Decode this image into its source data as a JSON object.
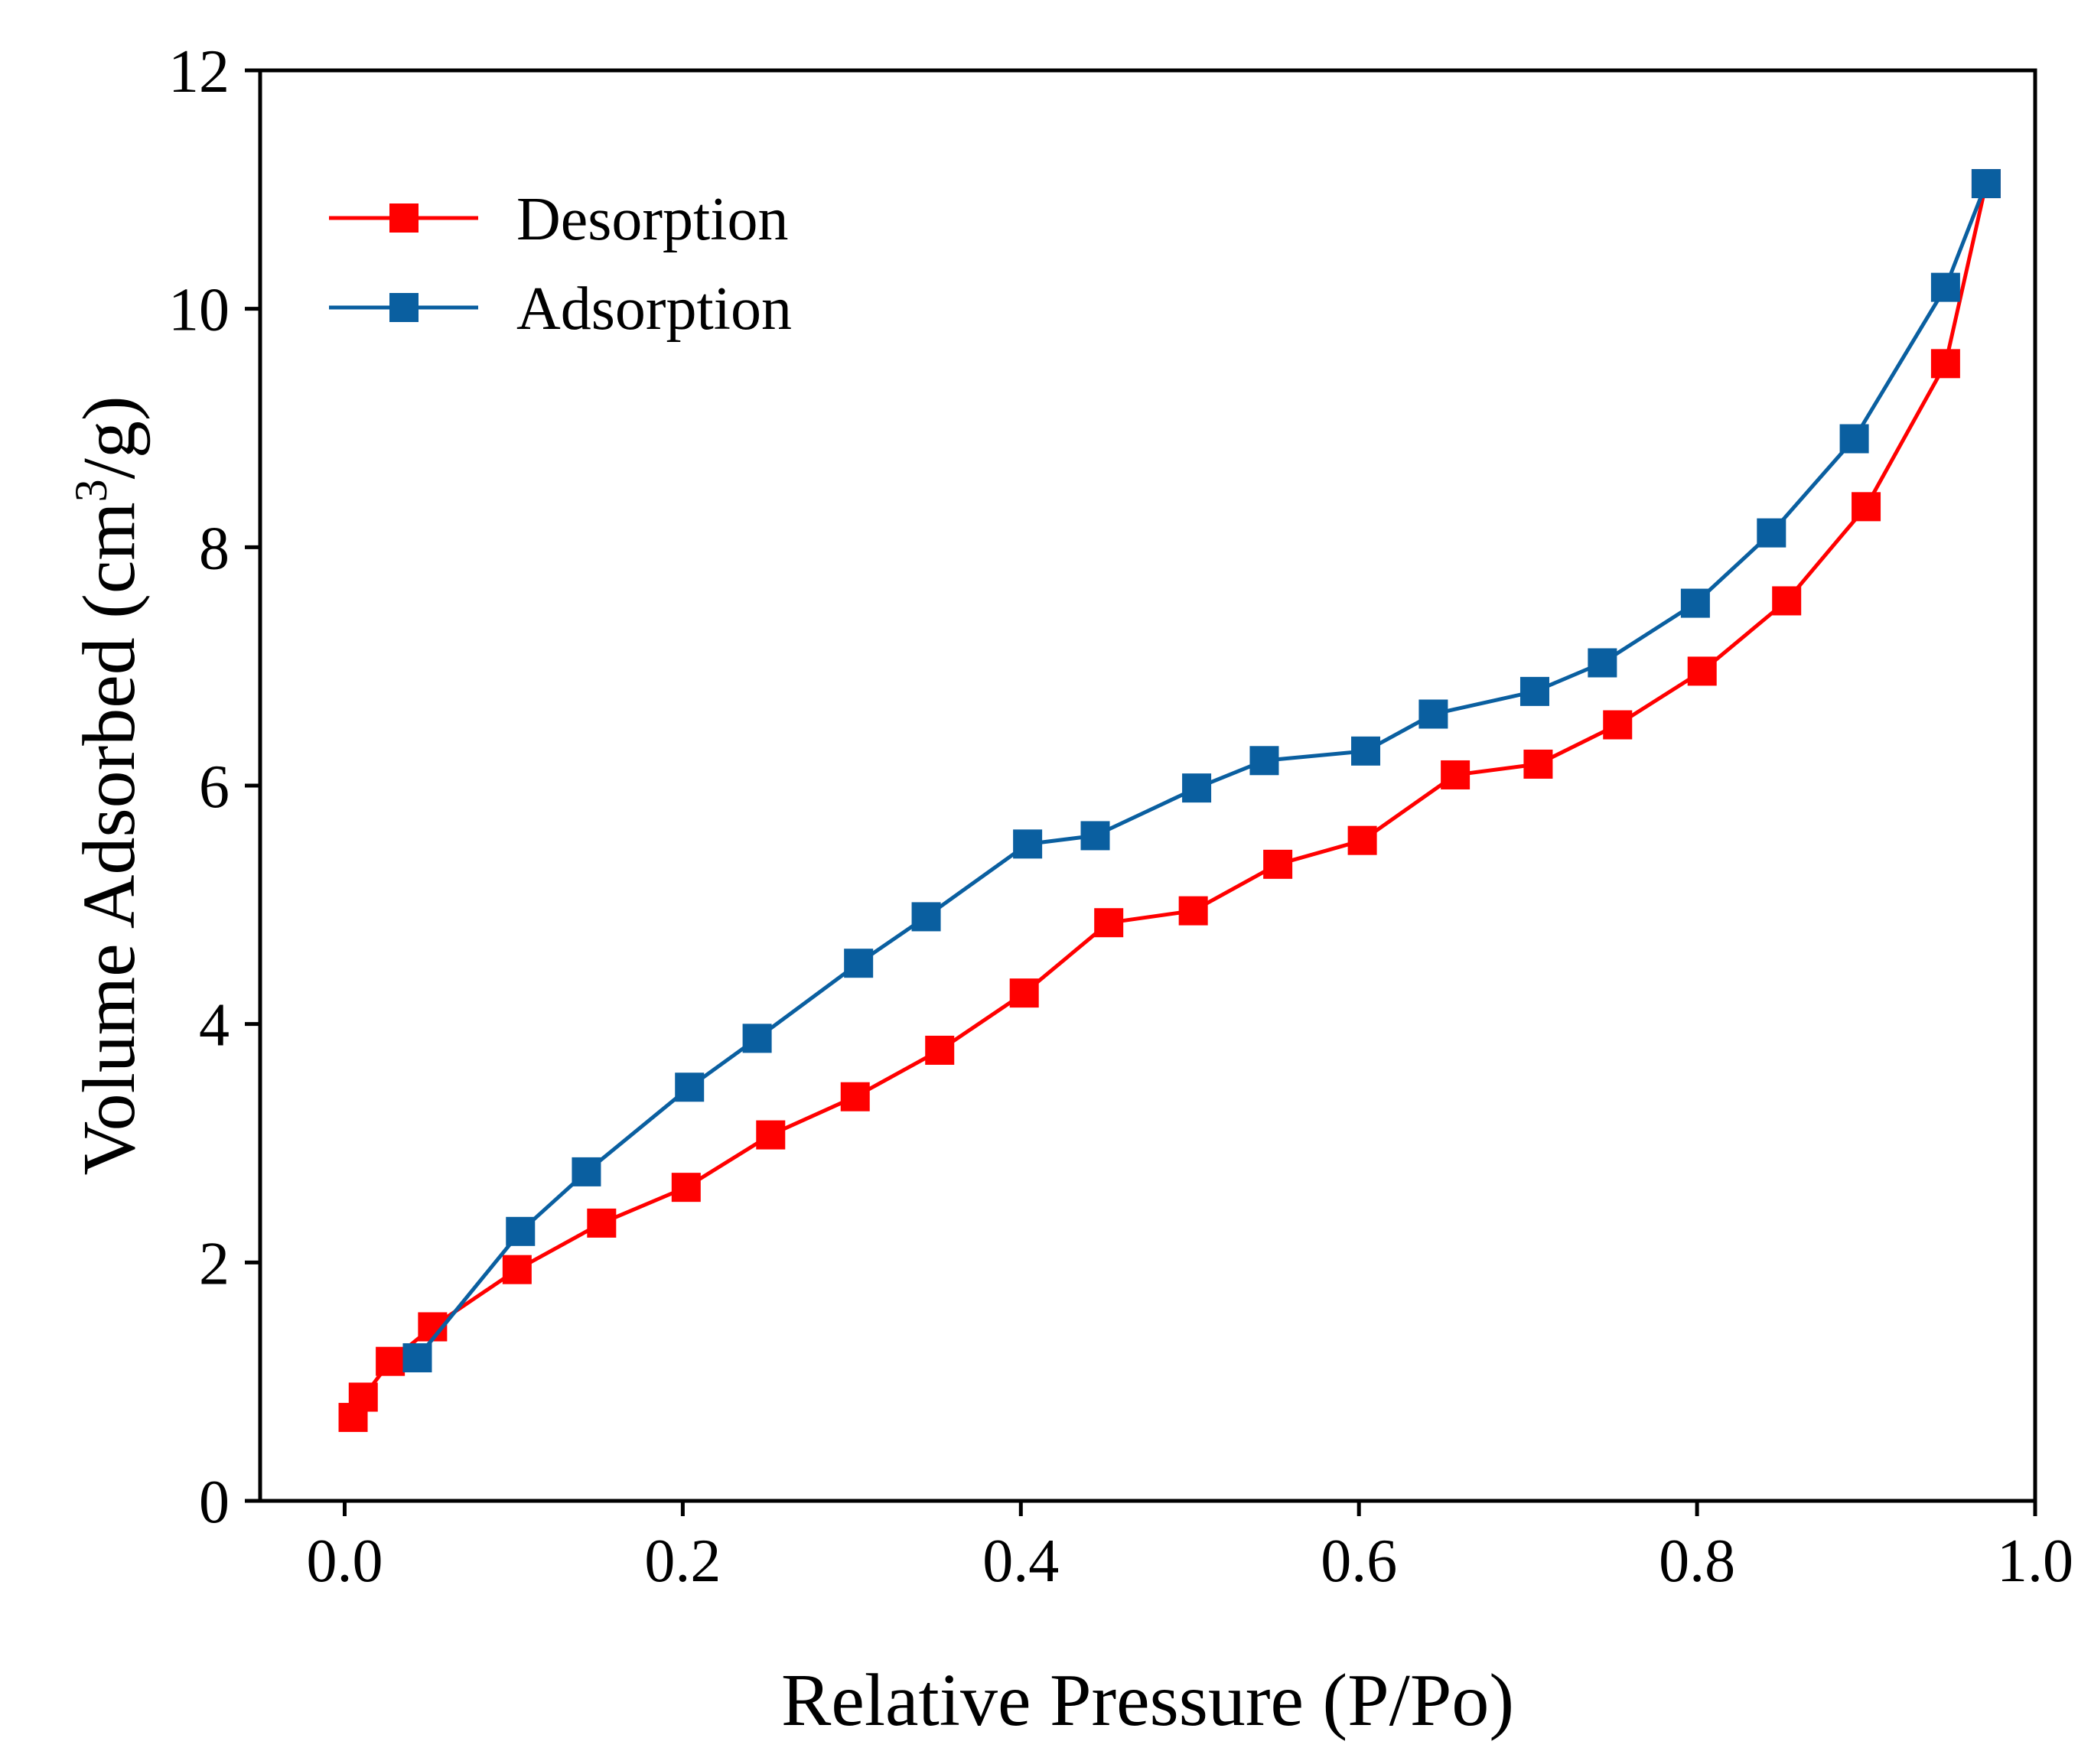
{
  "chart_data": {
    "type": "line",
    "title": "",
    "xlabel": "Relative Pressure (P/Po)",
    "ylabel": "Volume Adsorbed (cm³/g)",
    "ylabel_parts": {
      "main": "Volume Adsorbed (cm",
      "sup": "3",
      "tail": "/g)"
    },
    "xlim": [
      -0.05,
      1.0
    ],
    "ylim": [
      0,
      12
    ],
    "xticks": [
      0.0,
      0.2,
      0.4,
      0.6,
      0.8,
      1.0
    ],
    "xtick_labels": [
      "0.0",
      "0.2",
      "0.4",
      "0.6",
      "0.8",
      "1.0"
    ],
    "yticks": [
      0,
      2,
      4,
      6,
      8,
      10,
      12
    ],
    "ytick_labels": [
      "0",
      "2",
      "4",
      "6",
      "8",
      "10",
      "12"
    ],
    "grid": false,
    "legend_position": "top-left",
    "series": [
      {
        "name": "Desorption",
        "color": "#ff0000",
        "marker": "square",
        "x": [
          0.005,
          0.011,
          0.027,
          0.052,
          0.102,
          0.152,
          0.202,
          0.252,
          0.302,
          0.352,
          0.402,
          0.452,
          0.502,
          0.552,
          0.602,
          0.657,
          0.706,
          0.753,
          0.803,
          0.853,
          0.9,
          0.947,
          0.971
        ],
        "y": [
          0.7,
          0.87,
          1.17,
          1.46,
          1.94,
          2.33,
          2.63,
          3.07,
          3.39,
          3.78,
          4.26,
          4.85,
          4.95,
          5.34,
          5.54,
          6.09,
          6.18,
          6.51,
          6.96,
          7.55,
          8.34,
          9.54,
          11.05
        ]
      },
      {
        "name": "Adsorption",
        "color": "#0a5fa0",
        "marker": "square",
        "x": [
          0.043,
          0.104,
          0.143,
          0.204,
          0.244,
          0.304,
          0.344,
          0.404,
          0.444,
          0.504,
          0.544,
          0.604,
          0.644,
          0.704,
          0.744,
          0.799,
          0.844,
          0.893,
          0.947,
          0.971
        ],
        "y": [
          1.2,
          2.26,
          2.76,
          3.47,
          3.88,
          4.51,
          4.9,
          5.51,
          5.58,
          5.98,
          6.21,
          6.29,
          6.6,
          6.79,
          7.03,
          7.53,
          8.12,
          8.91,
          10.18,
          11.05
        ]
      }
    ]
  }
}
